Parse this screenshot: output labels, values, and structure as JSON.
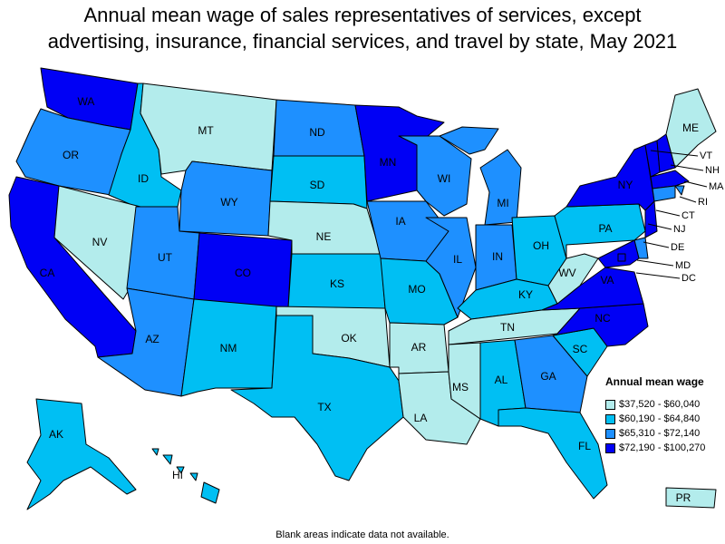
{
  "title_line1": "Annual mean wage of sales representatives of services, except",
  "title_line2": "advertising, insurance, financial services, and travel by state, May 2021",
  "legend": {
    "title": "Annual mean wage",
    "ranges": [
      {
        "label": "$37,520 - $60,040",
        "color": "#b3ecec"
      },
      {
        "label": "$60,190 - $64,840",
        "color": "#00bff3"
      },
      {
        "label": "$65,310 - $72,140",
        "color": "#1e90ff"
      },
      {
        "label": "$72,190 - $100,270",
        "color": "#0000f5"
      }
    ]
  },
  "note": "Blank areas indicate data not available.",
  "states": [
    {
      "abbr": "WA",
      "cls": 3
    },
    {
      "abbr": "OR",
      "cls": 2
    },
    {
      "abbr": "CA",
      "cls": 3
    },
    {
      "abbr": "ID",
      "cls": 1
    },
    {
      "abbr": "NV",
      "cls": 0
    },
    {
      "abbr": "MT",
      "cls": 0
    },
    {
      "abbr": "WY",
      "cls": 2
    },
    {
      "abbr": "UT",
      "cls": 2
    },
    {
      "abbr": "AZ",
      "cls": 2
    },
    {
      "abbr": "CO",
      "cls": 3
    },
    {
      "abbr": "NM",
      "cls": 1
    },
    {
      "abbr": "ND",
      "cls": 2
    },
    {
      "abbr": "SD",
      "cls": 1
    },
    {
      "abbr": "NE",
      "cls": 0
    },
    {
      "abbr": "KS",
      "cls": 1
    },
    {
      "abbr": "OK",
      "cls": 0
    },
    {
      "abbr": "TX",
      "cls": 1
    },
    {
      "abbr": "MN",
      "cls": 3
    },
    {
      "abbr": "IA",
      "cls": 2
    },
    {
      "abbr": "MO",
      "cls": 1
    },
    {
      "abbr": "AR",
      "cls": 0
    },
    {
      "abbr": "LA",
      "cls": 0
    },
    {
      "abbr": "WI",
      "cls": 2
    },
    {
      "abbr": "IL",
      "cls": 2
    },
    {
      "abbr": "MI",
      "cls": 2
    },
    {
      "abbr": "IN",
      "cls": 2
    },
    {
      "abbr": "OH",
      "cls": 1
    },
    {
      "abbr": "KY",
      "cls": 1
    },
    {
      "abbr": "TN",
      "cls": 0
    },
    {
      "abbr": "MS",
      "cls": 0
    },
    {
      "abbr": "AL",
      "cls": 1
    },
    {
      "abbr": "GA",
      "cls": 2
    },
    {
      "abbr": "FL",
      "cls": 1
    },
    {
      "abbr": "SC",
      "cls": 1
    },
    {
      "abbr": "NC",
      "cls": 3
    },
    {
      "abbr": "VA",
      "cls": 3
    },
    {
      "abbr": "WV",
      "cls": 0
    },
    {
      "abbr": "PA",
      "cls": 1
    },
    {
      "abbr": "NY",
      "cls": 3
    },
    {
      "abbr": "VT",
      "cls": 3
    },
    {
      "abbr": "NH",
      "cls": 3
    },
    {
      "abbr": "ME",
      "cls": 0
    },
    {
      "abbr": "MA",
      "cls": 3
    },
    {
      "abbr": "RI",
      "cls": 2
    },
    {
      "abbr": "CT",
      "cls": 2
    },
    {
      "abbr": "NJ",
      "cls": 3
    },
    {
      "abbr": "DE",
      "cls": 2
    },
    {
      "abbr": "MD",
      "cls": 3
    },
    {
      "abbr": "DC",
      "cls": 3
    },
    {
      "abbr": "AK",
      "cls": 1
    },
    {
      "abbr": "HI",
      "cls": 1
    },
    {
      "abbr": "PR",
      "cls": 0
    }
  ]
}
